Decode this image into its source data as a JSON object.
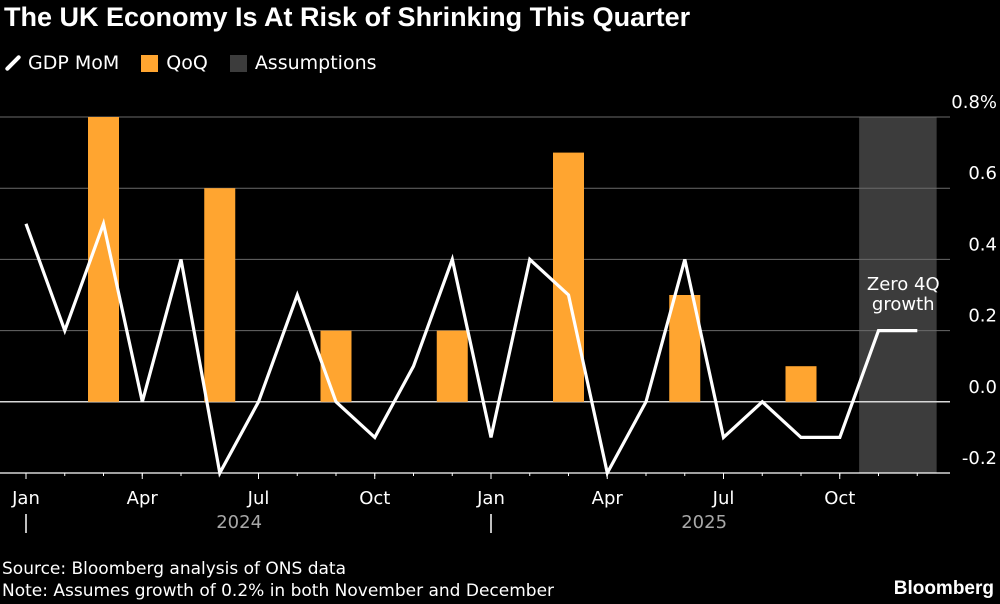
{
  "title": "The UK Economy Is At Risk of Shrinking This Quarter",
  "legend": [
    {
      "label": "GDP MoM",
      "kind": "line",
      "color": "#ffffff"
    },
    {
      "label": "QoQ",
      "kind": "bar",
      "color": "#ffa530"
    },
    {
      "label": "Assumptions",
      "kind": "band",
      "color": "#3c3c3c"
    }
  ],
  "footer": {
    "source": "Source: Bloomberg analysis of ONS data",
    "note": "Note: Assumes growth of 0.2% in both November and December",
    "brand": "Bloomberg"
  },
  "chart_data": {
    "type": "bar+line",
    "months": [
      "2024-01",
      "2024-02",
      "2024-03",
      "2024-04",
      "2024-05",
      "2024-06",
      "2024-07",
      "2024-08",
      "2024-09",
      "2024-10",
      "2024-11",
      "2024-12",
      "2025-01",
      "2025-02",
      "2025-03",
      "2025-04",
      "2025-05",
      "2025-06",
      "2025-07",
      "2025-08",
      "2025-09",
      "2025-10",
      "2025-11",
      "2025-12"
    ],
    "series": [
      {
        "name": "GDP MoM",
        "type": "line",
        "values": [
          0.5,
          0.2,
          0.5,
          0.0,
          0.4,
          -0.2,
          0.0,
          0.3,
          0.0,
          -0.1,
          0.1,
          0.4,
          -0.1,
          0.4,
          0.3,
          -0.2,
          0.0,
          0.4,
          -0.1,
          0.0,
          -0.1,
          -0.1,
          0.2,
          0.2
        ]
      },
      {
        "name": "QoQ",
        "type": "bar",
        "points": [
          {
            "month": "2024-03",
            "value": 0.8
          },
          {
            "month": "2024-06",
            "value": 0.6
          },
          {
            "month": "2024-09",
            "value": 0.2
          },
          {
            "month": "2024-12",
            "value": 0.2
          },
          {
            "month": "2025-03",
            "value": 0.7
          },
          {
            "month": "2025-06",
            "value": 0.3
          },
          {
            "month": "2025-09",
            "value": 0.1
          }
        ]
      }
    ],
    "assumptions_range": [
      "2025-11",
      "2025-12"
    ],
    "annotation": {
      "text_lines": [
        "Zero 4Q",
        "growth"
      ],
      "month": "2025-12"
    },
    "y_axis": {
      "ylim": [
        -0.2,
        0.8
      ],
      "ticks": [
        -0.2,
        0.0,
        0.2,
        0.4,
        0.6,
        0.8
      ],
      "tick_labels": [
        "-0.2",
        "0.0",
        "0.2",
        "0.4",
        "0.6",
        "0.8%"
      ],
      "position": "right",
      "grid": true
    },
    "x_axis": {
      "ticks": [
        {
          "month": "2024-01",
          "label": "Jan"
        },
        {
          "month": "2024-04",
          "label": "Apr"
        },
        {
          "month": "2024-07",
          "label": "Jul"
        },
        {
          "month": "2024-10",
          "label": "Oct"
        },
        {
          "month": "2025-01",
          "label": "Jan"
        },
        {
          "month": "2025-04",
          "label": "Apr"
        },
        {
          "month": "2025-07",
          "label": "Jul"
        },
        {
          "month": "2025-10",
          "label": "Oct"
        }
      ],
      "years": [
        {
          "label": "2024",
          "month": "2024-06"
        },
        {
          "label": "2025",
          "month": "2025-06"
        }
      ]
    }
  }
}
